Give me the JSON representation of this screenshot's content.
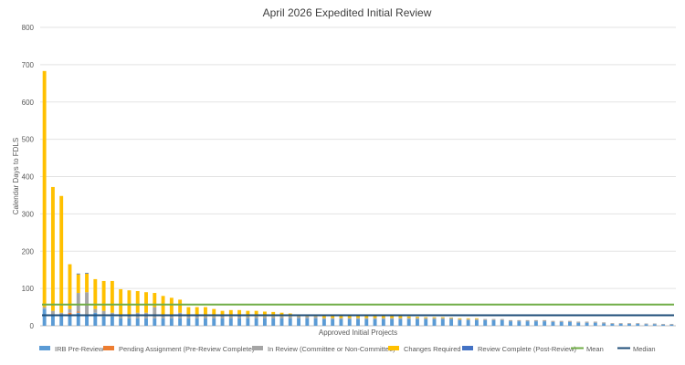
{
  "chart_data": {
    "type": "bar",
    "stacked": true,
    "title": "April 2026 Expedited Initial Review",
    "xlabel": "Approved Initial Projects",
    "ylabel": "Calendar Days to FDLS",
    "ylim": [
      0,
      800
    ],
    "yticks": [
      0,
      100,
      200,
      300,
      400,
      500,
      600,
      700,
      800
    ],
    "grid": true,
    "legend_position": "bottom",
    "series": [
      {
        "name": "IRB Pre-Review",
        "color": "#5b9bd5",
        "values": [
          45,
          30,
          30,
          30,
          35,
          30,
          35,
          25,
          25,
          20,
          20,
          20,
          20,
          20,
          20,
          20,
          20,
          20,
          20,
          20,
          20,
          20,
          20,
          20,
          20,
          20,
          20,
          20,
          20,
          20,
          20,
          20,
          20,
          18,
          18,
          18,
          18,
          18,
          18,
          18,
          18,
          18,
          18,
          18,
          18,
          18,
          18,
          18,
          18,
          15,
          15,
          15,
          15,
          15,
          15,
          12,
          12,
          12,
          12,
          12,
          10,
          10,
          10,
          8,
          8,
          8,
          6,
          5,
          5,
          5,
          5,
          4,
          4,
          3,
          3
        ]
      },
      {
        "name": "Pending Assignment (Pre-Review Complete)",
        "color": "#ed7d31",
        "values": [
          0,
          0,
          0,
          5,
          3,
          0,
          0,
          0,
          0,
          0,
          0,
          0,
          0,
          0,
          0,
          0,
          0,
          0,
          0,
          0,
          0,
          0,
          0,
          0,
          0,
          0,
          0,
          0,
          0,
          0,
          0,
          0,
          0,
          0,
          0,
          0,
          0,
          0,
          0,
          0,
          0,
          0,
          0,
          0,
          0,
          0,
          0,
          0,
          0,
          0,
          0,
          0,
          0,
          0,
          0,
          0,
          0,
          0,
          0,
          0,
          0,
          0,
          0,
          0,
          0,
          0,
          0,
          0,
          0,
          0,
          0,
          0,
          0,
          0,
          0
        ]
      },
      {
        "name": "In Review (Committee or Non-Committee)",
        "color": "#a5a5a5",
        "values": [
          5,
          10,
          5,
          10,
          50,
          60,
          10,
          15,
          10,
          10,
          10,
          15,
          15,
          30,
          10,
          10,
          15,
          10,
          10,
          5,
          5,
          10,
          5,
          10,
          5,
          5,
          5,
          5,
          5,
          5,
          5,
          5,
          5,
          3,
          3,
          3,
          3,
          3,
          3,
          3,
          3,
          3,
          3,
          3,
          3,
          3,
          3,
          3,
          3,
          3,
          3,
          3,
          3,
          3,
          3,
          3,
          3,
          3,
          3,
          3,
          3,
          3,
          3,
          3,
          3,
          3,
          3,
          2,
          2,
          2,
          2,
          2,
          2,
          2,
          2
        ]
      },
      {
        "name": "Changes Required",
        "color": "#ffc000",
        "values": [
          633,
          332,
          313,
          120,
          50,
          50,
          80,
          80,
          85,
          68,
          65,
          58,
          55,
          38,
          50,
          45,
          35,
          20,
          20,
          25,
          20,
          10,
          17,
          12,
          15,
          15,
          13,
          12,
          10,
          8,
          3,
          3,
          3,
          7,
          7,
          7,
          7,
          7,
          7,
          7,
          5,
          5,
          5,
          4,
          3,
          2,
          2,
          2,
          1,
          2,
          2,
          2,
          0,
          0,
          0,
          0,
          0,
          0,
          0,
          0,
          0,
          0,
          0,
          0,
          0,
          0,
          0,
          0,
          0,
          0,
          0,
          0,
          0,
          0,
          0
        ]
      },
      {
        "name": "Review Complete (Post-Review)",
        "color": "#4472c4",
        "values": [
          0,
          0,
          0,
          0,
          2,
          2,
          0,
          0,
          0,
          0,
          0,
          0,
          0,
          0,
          0,
          0,
          0,
          0,
          0,
          0,
          0,
          0,
          0,
          0,
          0,
          0,
          0,
          0,
          0,
          0,
          0,
          0,
          0,
          0,
          0,
          0,
          0,
          0,
          0,
          0,
          0,
          0,
          0,
          0,
          0,
          0,
          0,
          0,
          0,
          0,
          0,
          0,
          0,
          0,
          0,
          0,
          0,
          0,
          0,
          0,
          0,
          0,
          0,
          0,
          0,
          0,
          0,
          0,
          0,
          0,
          0,
          0,
          0,
          0,
          0
        ]
      }
    ],
    "lines": [
      {
        "name": "Mean",
        "value": 57,
        "color": "#70ad47"
      },
      {
        "name": "Median",
        "value": 28,
        "color": "#1f4e79"
      }
    ]
  }
}
